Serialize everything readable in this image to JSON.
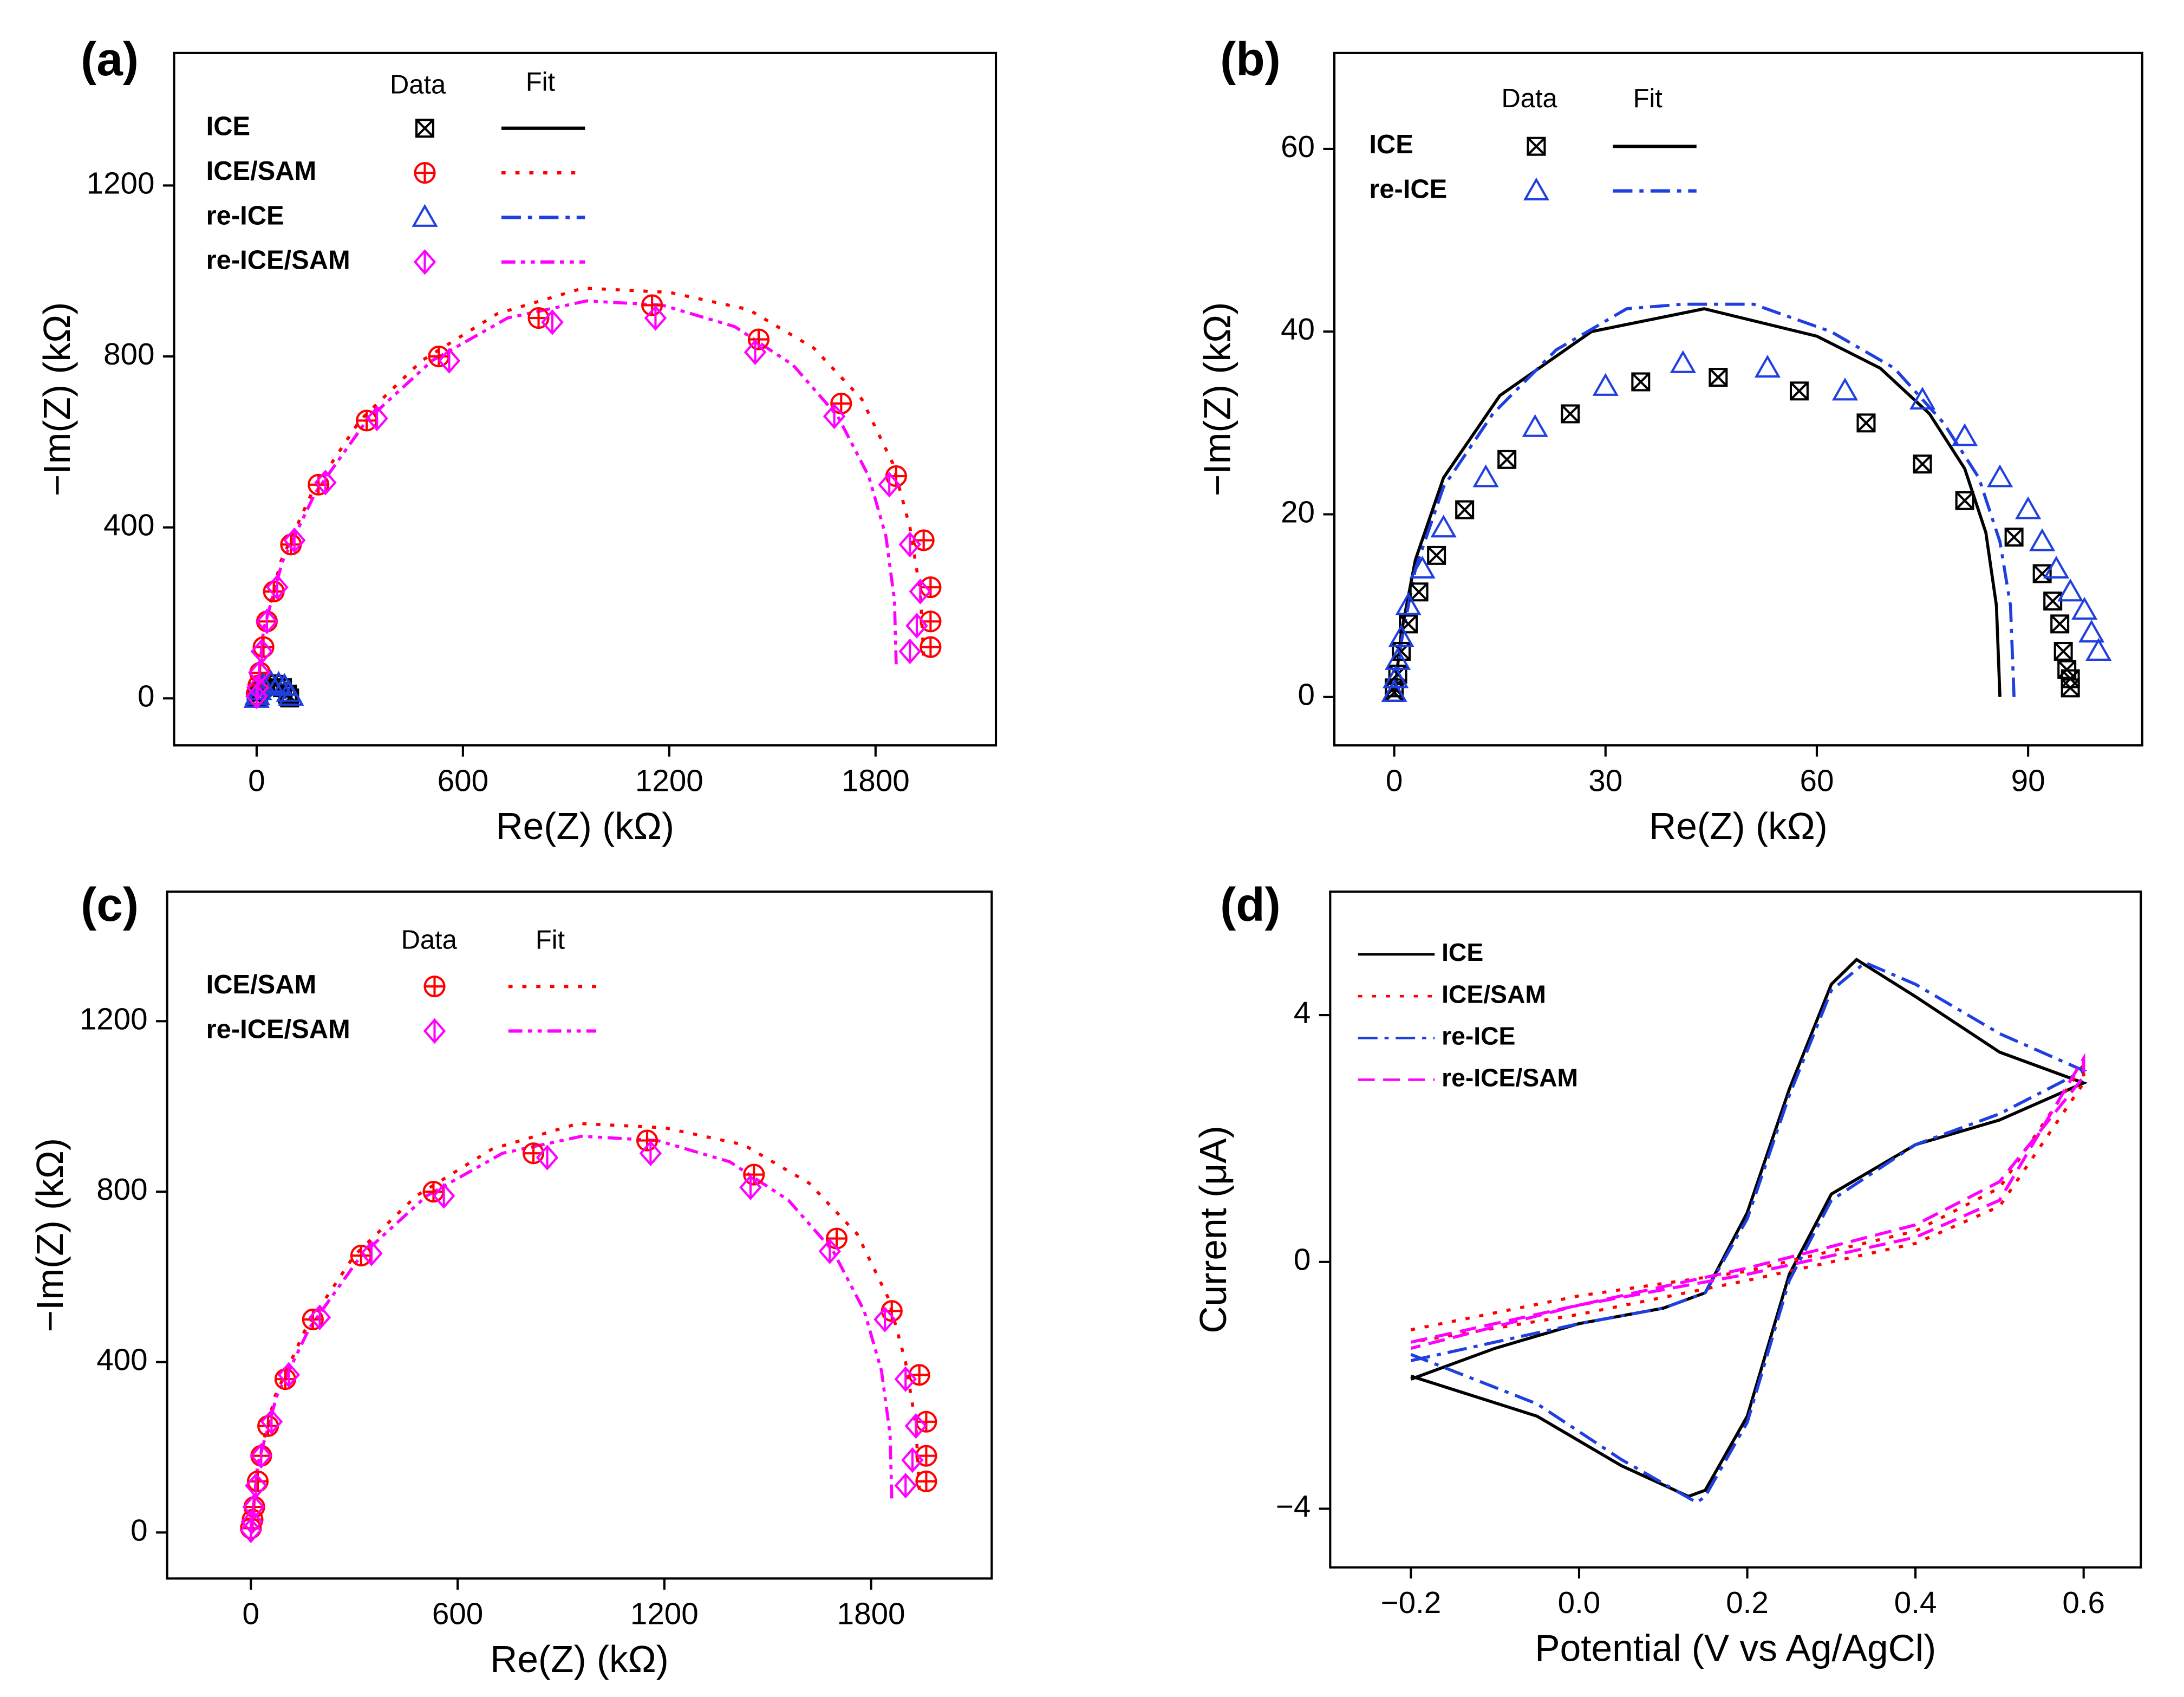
{
  "chart_data": [
    {
      "type": "scatter",
      "label": "(a)",
      "x_label": "Re(Z) (kΩ)",
      "y_label": "−Im(Z) (kΩ)",
      "legend": "upper left",
      "legend_headers": [
        "Data",
        "Fit"
      ],
      "xlim": [
        -240,
        2150
      ],
      "ylim": [
        -110,
        1510
      ],
      "xticks": [
        0,
        600,
        1200,
        1800
      ],
      "yticks": [
        0,
        400,
        800,
        1200
      ],
      "series": [
        {
          "name": "ICE",
          "color": "#000000",
          "marker": "square-x",
          "dash": "solid",
          "x": [
            96,
            90,
            75,
            57,
            35,
            16,
            6,
            2,
            0
          ],
          "values": [
            1,
            10,
            25,
            33,
            34,
            26,
            15,
            5,
            1
          ],
          "fit": {
            "x": [
              86,
              76,
              44,
              15,
              0
            ],
            "values": [
              0,
              31,
              42,
              33,
              0
            ]
          }
        },
        {
          "name": "ICE/SAM",
          "color": "#ff0000",
          "marker": "circle-plus",
          "dash": "dot",
          "x": [
            1960,
            1960,
            1960,
            1940,
            1860,
            1700,
            1460,
            1150,
            820,
            530,
            320,
            180,
            100,
            50,
            30,
            20,
            10,
            5,
            0
          ],
          "values": [
            120,
            180,
            260,
            370,
            520,
            690,
            840,
            920,
            890,
            800,
            650,
            500,
            360,
            250,
            180,
            120,
            60,
            30,
            10
          ],
          "fit": {
            "x": [
              1940,
              1930,
              1900,
              1850,
              1760,
              1620,
              1430,
              1200,
              950,
              700,
              480,
              300,
              160,
              70,
              20,
              0
            ],
            "values": [
              100,
              250,
              400,
              550,
              700,
              820,
              910,
              950,
              960,
              900,
              790,
              650,
              480,
              320,
              160,
              0
            ]
          }
        },
        {
          "name": "re-ICE",
          "color": "#1f3fe0",
          "marker": "triangle",
          "dash": "dashdot",
          "x": [
            100,
            94,
            81,
            64,
            41,
            20,
            7,
            2,
            0
          ],
          "values": [
            5,
            14,
            28,
            33,
            36,
            29,
            18,
            6,
            0
          ],
          "fit": {
            "x": [
              88,
              78,
              51,
              23,
              0
            ],
            "values": [
              0,
              30,
              43,
              38,
              0
            ]
          }
        },
        {
          "name": "re-ICE/SAM",
          "color": "#ff00ff",
          "marker": "diamond-line",
          "dash": "dashdotdot",
          "x": [
            1900,
            1920,
            1930,
            1900,
            1840,
            1680,
            1450,
            1160,
            860,
            560,
            350,
            200,
            110,
            60,
            30,
            15,
            8,
            3,
            0
          ],
          "values": [
            110,
            170,
            250,
            360,
            500,
            660,
            810,
            890,
            880,
            790,
            655,
            505,
            370,
            260,
            180,
            110,
            60,
            25,
            5
          ],
          "fit": {
            "x": [
              1860,
              1855,
              1830,
              1780,
              1690,
              1560,
              1390,
              1180,
              960,
              730,
              510,
              320,
              170,
              75,
              20,
              0
            ],
            "values": [
              80,
              230,
              380,
              520,
              660,
              780,
              870,
              920,
              930,
              890,
              790,
              650,
              480,
              320,
              160,
              0
            ]
          }
        }
      ]
    },
    {
      "type": "scatter",
      "label": "(b)",
      "x_label": "Re(Z) (kΩ)",
      "y_label": "−Im(Z) (kΩ)",
      "legend": "upper left",
      "legend_headers": [
        "Data",
        "Fit"
      ],
      "xlim": [
        -8.5,
        106.2
      ],
      "ylim": [
        -5.3,
        70.5
      ],
      "xticks": [
        0,
        30,
        60,
        90
      ],
      "yticks": [
        0,
        20,
        40,
        60
      ],
      "series": [
        {
          "name": "ICE",
          "color": "#000000",
          "marker": "square-x",
          "dash": "solid",
          "x": [
            96,
            96,
            95.5,
            95,
            94.5,
            93.5,
            92,
            88,
            81,
            75,
            67,
            57.5,
            46,
            35,
            25,
            16,
            10,
            6,
            3.5,
            2,
            1,
            0.5,
            0,
            0
          ],
          "values": [
            1,
            2,
            3,
            5,
            8,
            10.5,
            13.5,
            17.5,
            21.5,
            25.5,
            30,
            33.5,
            35,
            34.5,
            31,
            26,
            20.5,
            15.5,
            11.5,
            8,
            5,
            2.5,
            1,
            0.5
          ],
          "fit": {
            "x": [
              86,
              85.5,
              84,
              81,
              76,
              69,
              60,
              44,
              28,
              15,
              7,
              3,
              1,
              0
            ],
            "values": [
              0,
              10,
              18,
              25,
              31,
              36,
              39.5,
              42.5,
              40,
              33,
              24,
              15,
              7,
              0
            ]
          }
        },
        {
          "name": "re-ICE",
          "color": "#1f3fe0",
          "marker": "triangle",
          "dash": "dashdot",
          "x": [
            100,
            99,
            98,
            96,
            94,
            92,
            90,
            86,
            81,
            75,
            64,
            53,
            41,
            30,
            20,
            13,
            7,
            4,
            2,
            1,
            0.5,
            0.2,
            0
          ],
          "values": [
            5,
            7,
            9.5,
            11.5,
            14,
            17,
            20.5,
            24,
            28.5,
            32.5,
            33.5,
            36,
            36.5,
            34,
            29.5,
            24,
            18.5,
            14,
            10,
            6.5,
            4,
            2,
            0.5
          ],
          "fit": {
            "x": [
              88,
              87.5,
              86,
              83,
              78,
              71,
              62,
              51,
              41,
              33,
              23,
              14,
              7,
              3,
              1,
              0
            ],
            "values": [
              0,
              10,
              17,
              24,
              30,
              36,
              40,
              43,
              43,
              42.5,
              38,
              31,
              23,
              14,
              6,
              0
            ]
          }
        }
      ]
    },
    {
      "type": "scatter",
      "label": "(c)",
      "x_label": "Re(Z) (kΩ)",
      "y_label": "−Im(Z) (kΩ)",
      "legend": "upper left",
      "legend_headers": [
        "Data",
        "Fit"
      ],
      "xlim": [
        -243,
        2150
      ],
      "ylim": [
        -108,
        1504
      ],
      "xticks": [
        0,
        600,
        1200,
        1800
      ],
      "yticks": [
        0,
        400,
        800,
        1200
      ],
      "series": [
        {
          "name": "ICE/SAM",
          "color": "#ff0000",
          "marker": "circle-plus",
          "dash": "dot",
          "x": [
            1960,
            1960,
            1960,
            1940,
            1860,
            1700,
            1460,
            1150,
            820,
            530,
            320,
            180,
            100,
            50,
            30,
            20,
            10,
            5,
            0
          ],
          "values": [
            120,
            180,
            260,
            370,
            520,
            690,
            840,
            920,
            890,
            800,
            650,
            500,
            360,
            250,
            180,
            120,
            60,
            30,
            10
          ],
          "fit": {
            "x": [
              1940,
              1930,
              1900,
              1850,
              1760,
              1620,
              1430,
              1200,
              950,
              700,
              480,
              300,
              160,
              70,
              20,
              0
            ],
            "values": [
              100,
              250,
              400,
              550,
              700,
              820,
              910,
              950,
              960,
              900,
              790,
              650,
              480,
              320,
              160,
              0
            ]
          }
        },
        {
          "name": "re-ICE/SAM",
          "color": "#ff00ff",
          "marker": "diamond-line",
          "dash": "dashdotdot",
          "x": [
            1900,
            1920,
            1930,
            1900,
            1840,
            1680,
            1450,
            1160,
            860,
            560,
            350,
            200,
            110,
            60,
            30,
            15,
            8,
            3,
            0
          ],
          "values": [
            110,
            170,
            250,
            360,
            500,
            660,
            810,
            890,
            880,
            790,
            655,
            505,
            370,
            260,
            180,
            110,
            60,
            25,
            5
          ],
          "fit": {
            "x": [
              1860,
              1855,
              1830,
              1780,
              1690,
              1560,
              1390,
              1180,
              960,
              730,
              510,
              320,
              170,
              75,
              20,
              0
            ],
            "values": [
              80,
              230,
              380,
              520,
              660,
              780,
              870,
              920,
              930,
              890,
              790,
              650,
              480,
              320,
              160,
              0
            ]
          }
        }
      ]
    },
    {
      "type": "line",
      "label": "(d)",
      "x_label": "Potential (V vs Ag/AgCl)",
      "y_label": "Current (μA)",
      "legend": "upper left",
      "xlim": [
        -0.296,
        0.668
      ],
      "ylim": [
        -4.95,
        6.0
      ],
      "xticks": [
        {
          "value": -0.2,
          "label": "−0.2"
        },
        {
          "value": 0,
          "label": "0.0"
        },
        0.2,
        0.4,
        0.6
      ],
      "yticks": [
        {
          "value": -4,
          "label": "−4"
        },
        0,
        4
      ],
      "series": [
        {
          "name": "ICE",
          "color": "#000000",
          "dash": "solid",
          "x": [
            -0.2,
            -0.1,
            0,
            0.1,
            0.15,
            0.2,
            0.25,
            0.3,
            0.33,
            0.4,
            0.5,
            0.6,
            0.5,
            0.4,
            0.3,
            0.25,
            0.2,
            0.15,
            0.13,
            0.05,
            -0.05,
            -0.2
          ],
          "values": [
            -1.9,
            -1.4,
            -1.0,
            -0.75,
            -0.5,
            0.8,
            2.8,
            4.5,
            4.9,
            4.3,
            3.4,
            2.9,
            2.3,
            1.9,
            1.1,
            -0.2,
            -2.5,
            -3.7,
            -3.8,
            -3.3,
            -2.5,
            -1.85
          ]
        },
        {
          "name": "ICE/SAM",
          "color": "#ff0000",
          "dash": "dot",
          "x": [
            -0.2,
            0,
            0.2,
            0.4,
            0.5,
            0.6,
            0.6,
            0.5,
            0.4,
            0.2,
            0,
            -0.2
          ],
          "values": [
            -1.1,
            -0.55,
            -0.15,
            0.5,
            1.2,
            3.2,
            2.9,
            0.9,
            0.3,
            -0.3,
            -0.85,
            -1.3
          ]
        },
        {
          "name": "re-ICE",
          "color": "#1f3fe0",
          "dash": "dashdot",
          "x": [
            -0.2,
            -0.1,
            0,
            0.1,
            0.15,
            0.2,
            0.25,
            0.3,
            0.34,
            0.4,
            0.5,
            0.6,
            0.5,
            0.4,
            0.3,
            0.25,
            0.2,
            0.15,
            0.14,
            0.05,
            -0.05,
            -0.2
          ],
          "values": [
            -1.6,
            -1.3,
            -1.0,
            -0.75,
            -0.5,
            0.7,
            2.7,
            4.4,
            4.85,
            4.5,
            3.7,
            3.1,
            2.4,
            1.9,
            1.0,
            -0.3,
            -2.6,
            -3.8,
            -3.9,
            -3.2,
            -2.3,
            -1.5
          ]
        },
        {
          "name": "re-ICE/SAM",
          "color": "#ff00ff",
          "dash": "dash",
          "x": [
            -0.2,
            0,
            0.2,
            0.4,
            0.5,
            0.6,
            0.6,
            0.5,
            0.4,
            0.2,
            0,
            -0.2
          ],
          "values": [
            -1.3,
            -0.7,
            -0.1,
            0.6,
            1.3,
            3.0,
            3.3,
            1.0,
            0.4,
            -0.2,
            -0.7,
            -1.4
          ]
        }
      ]
    }
  ]
}
